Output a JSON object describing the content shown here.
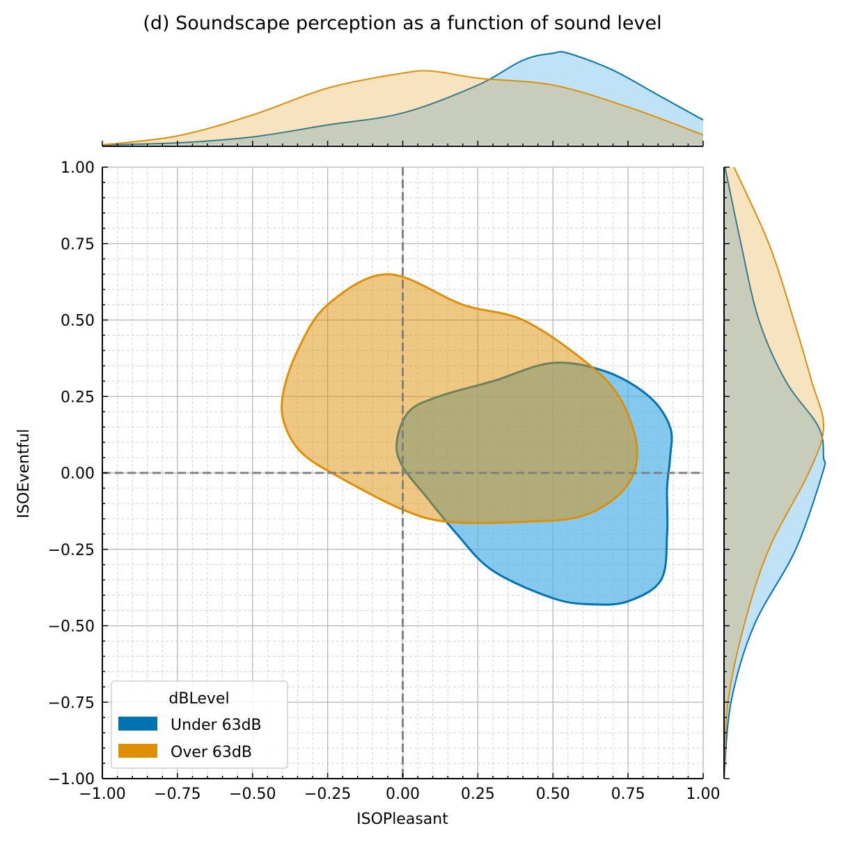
{
  "chart_data": {
    "type": "kde-contour-joint",
    "title": "(d) Soundscape perception as a function of sound level",
    "xlabel": "ISOPleasant",
    "ylabel": "ISOEventful",
    "xlim": [
      -1,
      1
    ],
    "ylim": [
      -1,
      1
    ],
    "ticks": [
      -1.0,
      -0.75,
      -0.5,
      -0.25,
      0.0,
      0.25,
      0.5,
      0.75,
      1.0
    ],
    "tick_labels": [
      "−1.00",
      "−0.75",
      "−0.50",
      "−0.25",
      "0.00",
      "0.25",
      "0.50",
      "0.75",
      "1.00"
    ],
    "grid": true,
    "reference_lines": {
      "x": 0,
      "y": 0
    },
    "legend": {
      "title": "dBLevel",
      "position": "lower-left",
      "entries": [
        "Under 63dB",
        "Over 63dB"
      ]
    },
    "series": [
      {
        "name": "Under 63dB",
        "color": "#0173b2",
        "fill": "#56b4e9",
        "contour": [
          [
            -0.02,
            0.1
          ],
          [
            0.02,
            0.2
          ],
          [
            0.12,
            0.25
          ],
          [
            0.3,
            0.3
          ],
          [
            0.5,
            0.36
          ],
          [
            0.68,
            0.33
          ],
          [
            0.82,
            0.25
          ],
          [
            0.89,
            0.15
          ],
          [
            0.89,
            0.05
          ],
          [
            0.88,
            -0.05
          ],
          [
            0.88,
            -0.2
          ],
          [
            0.86,
            -0.35
          ],
          [
            0.75,
            -0.42
          ],
          [
            0.63,
            -0.43
          ],
          [
            0.5,
            -0.41
          ],
          [
            0.3,
            -0.32
          ],
          [
            0.18,
            -0.2
          ],
          [
            0.08,
            -0.08
          ],
          [
            0.0,
            0.02
          ]
        ],
        "marginal_x": [
          [
            -1.0,
            0.0
          ],
          [
            -0.75,
            0.02
          ],
          [
            -0.5,
            0.08
          ],
          [
            -0.25,
            0.2
          ],
          [
            0.0,
            0.32
          ],
          [
            0.25,
            0.6
          ],
          [
            0.4,
            0.85
          ],
          [
            0.5,
            0.92
          ],
          [
            0.55,
            0.92
          ],
          [
            0.7,
            0.75
          ],
          [
            0.85,
            0.5
          ],
          [
            1.0,
            0.25
          ]
        ],
        "marginal_y": [
          [
            -1.0,
            0.0
          ],
          [
            -0.75,
            0.07
          ],
          [
            -0.5,
            0.3
          ],
          [
            -0.25,
            0.72
          ],
          [
            0.0,
            0.99
          ],
          [
            0.05,
            1.0
          ],
          [
            0.15,
            0.95
          ],
          [
            0.3,
            0.62
          ],
          [
            0.5,
            0.35
          ],
          [
            0.75,
            0.17
          ],
          [
            1.0,
            0.01
          ]
        ]
      },
      {
        "name": "Over 63dB",
        "color": "#de8f05",
        "fill": "#de8f05",
        "contour": [
          [
            -0.4,
            0.25
          ],
          [
            -0.35,
            0.4
          ],
          [
            -0.25,
            0.55
          ],
          [
            -0.05,
            0.65
          ],
          [
            0.2,
            0.55
          ],
          [
            0.4,
            0.5
          ],
          [
            0.6,
            0.37
          ],
          [
            0.72,
            0.25
          ],
          [
            0.78,
            0.08
          ],
          [
            0.74,
            -0.05
          ],
          [
            0.6,
            -0.14
          ],
          [
            0.4,
            -0.16
          ],
          [
            0.15,
            -0.16
          ],
          [
            0.0,
            -0.12
          ],
          [
            -0.2,
            -0.02
          ],
          [
            -0.33,
            0.06
          ],
          [
            -0.39,
            0.15
          ]
        ],
        "marginal_x": [
          [
            -1.0,
            0.0
          ],
          [
            -0.75,
            0.09
          ],
          [
            -0.5,
            0.3
          ],
          [
            -0.25,
            0.57
          ],
          [
            0.0,
            0.72
          ],
          [
            0.1,
            0.74
          ],
          [
            0.25,
            0.67
          ],
          [
            0.5,
            0.6
          ],
          [
            0.75,
            0.38
          ],
          [
            1.0,
            0.1
          ]
        ],
        "marginal_y": [
          [
            -1.0,
            0.0
          ],
          [
            -0.75,
            0.04
          ],
          [
            -0.5,
            0.2
          ],
          [
            -0.25,
            0.45
          ],
          [
            0.0,
            0.85
          ],
          [
            0.15,
            1.0
          ],
          [
            0.3,
            0.88
          ],
          [
            0.5,
            0.7
          ],
          [
            0.75,
            0.45
          ],
          [
            1.0,
            0.1
          ]
        ]
      }
    ]
  }
}
